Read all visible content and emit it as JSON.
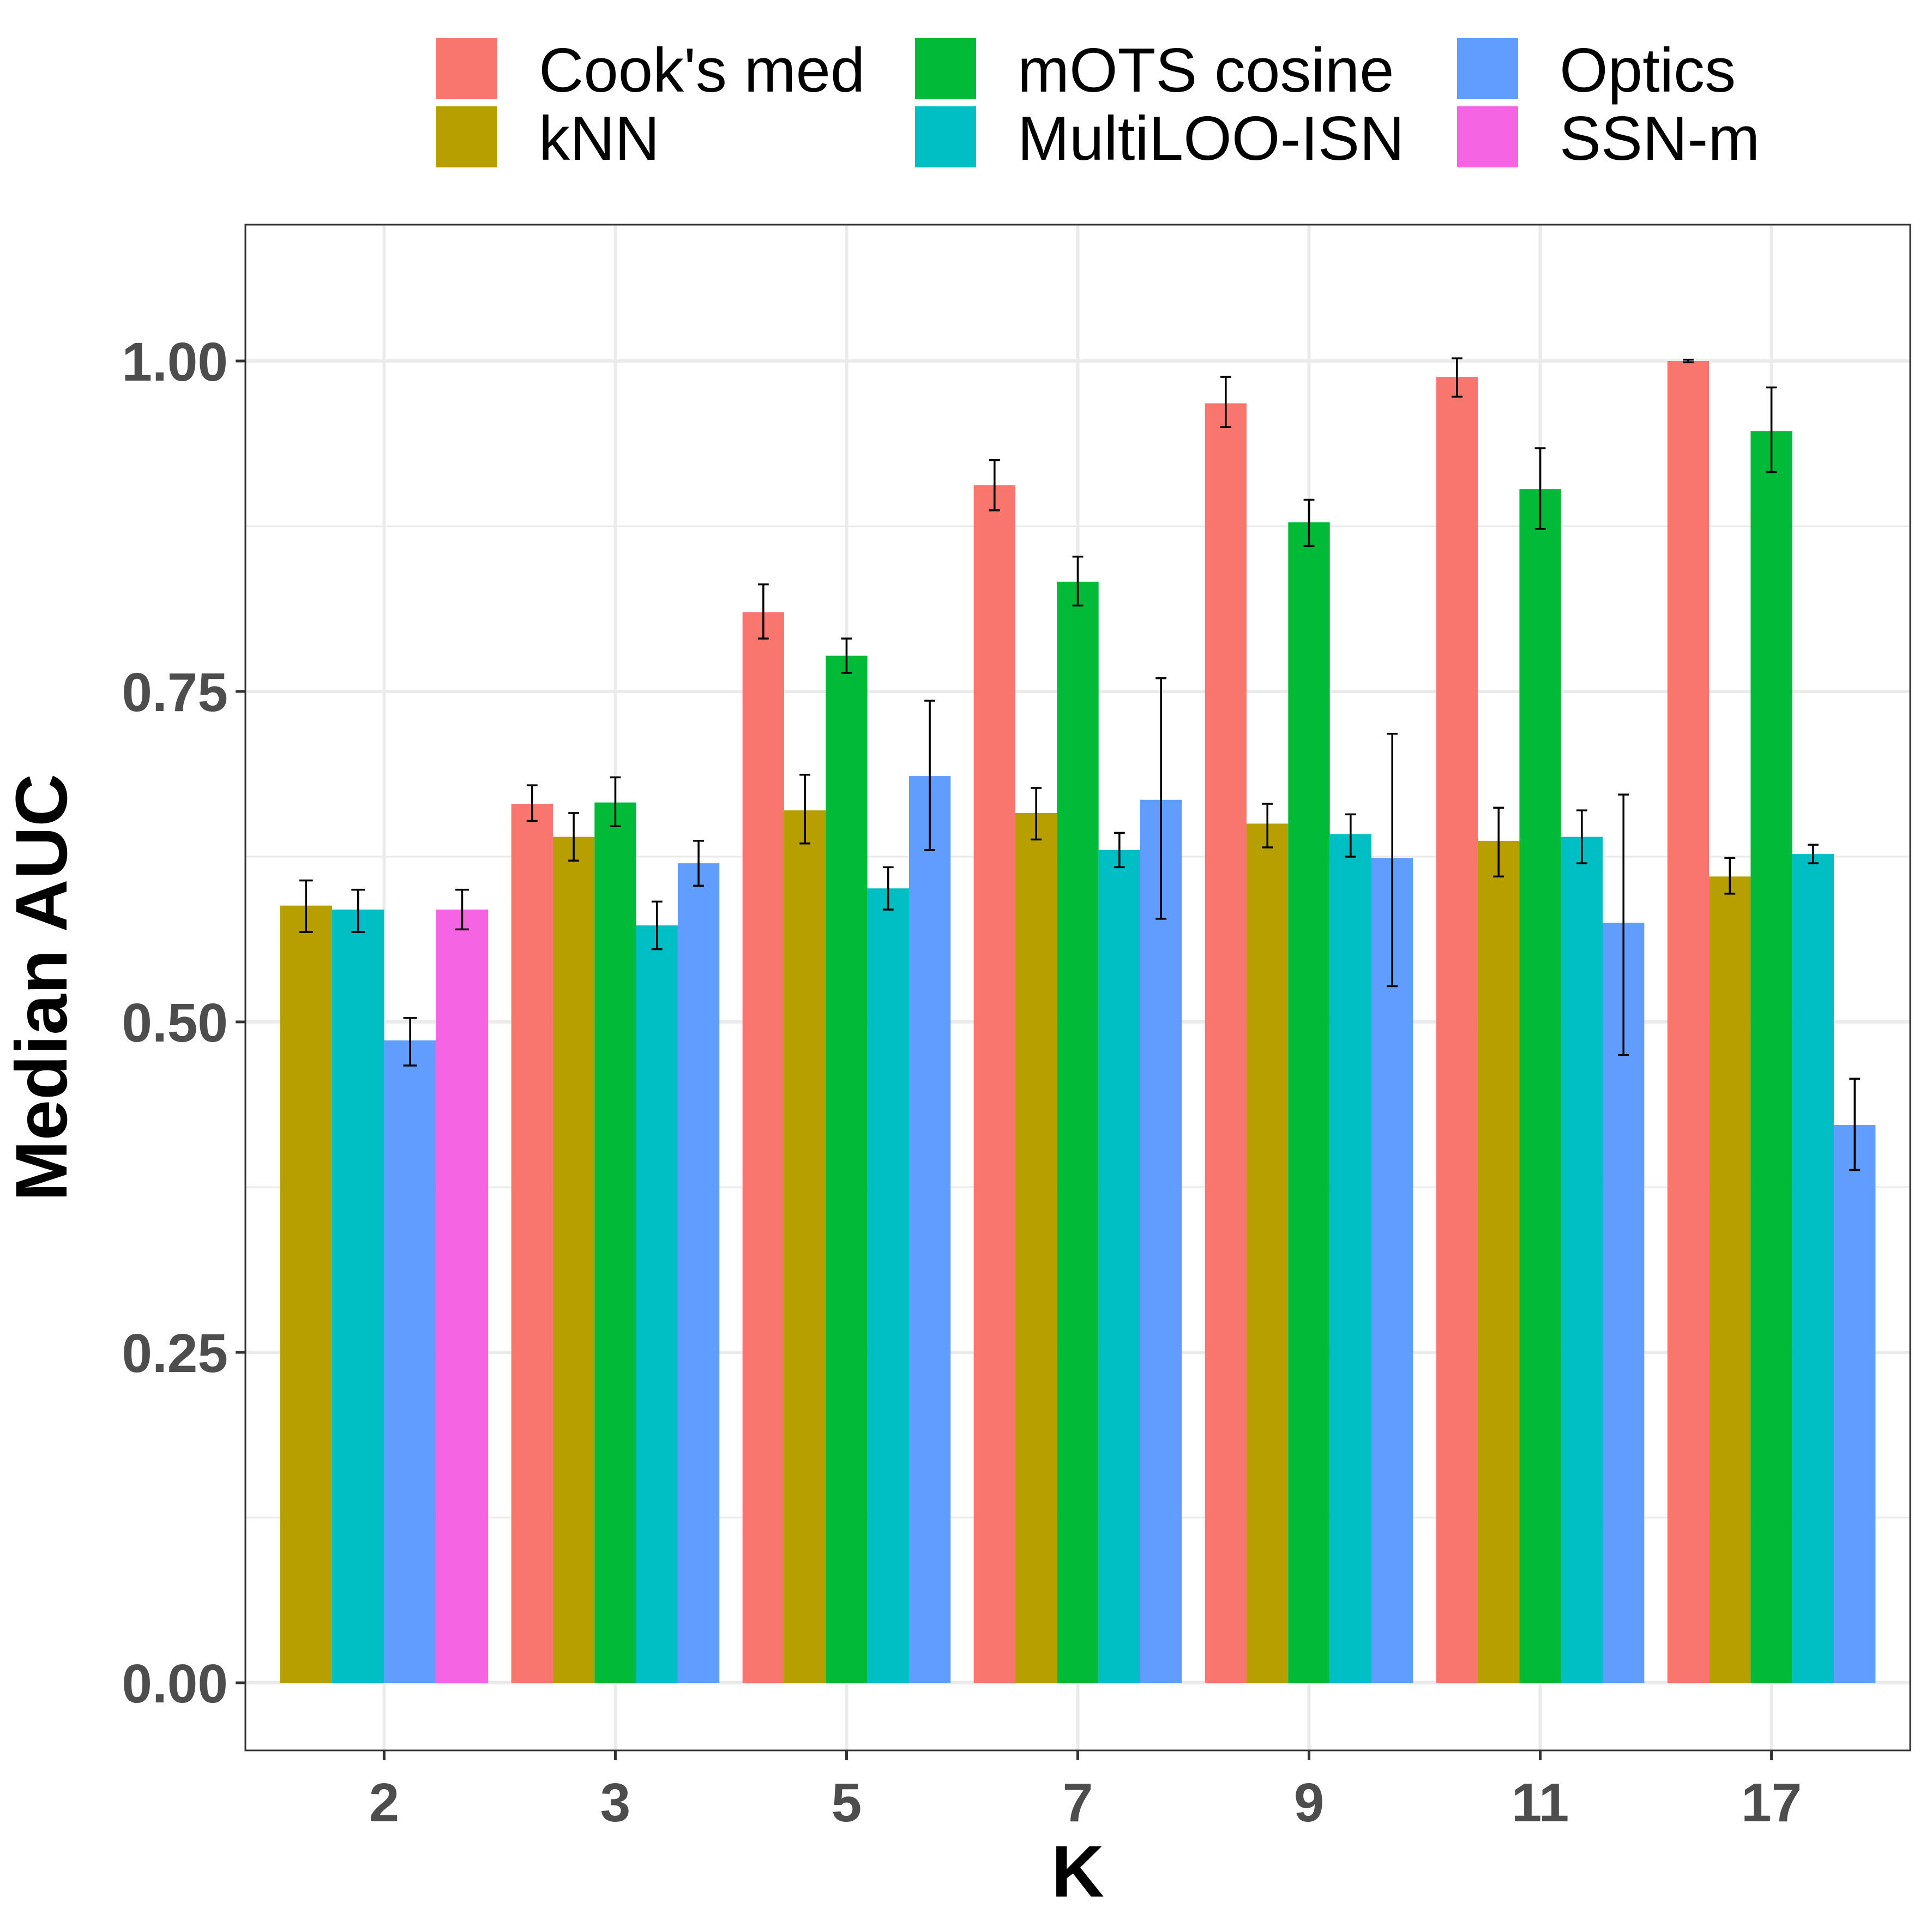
{
  "chart_data": {
    "type": "bar",
    "title": "",
    "xlabel": "K",
    "ylabel": "Median AUC",
    "categories": [
      "2",
      "3",
      "5",
      "7",
      "9",
      "11",
      "17"
    ],
    "ylim": [
      -0.05,
      1.1
    ],
    "yticks": [
      0.0,
      0.25,
      0.5,
      0.75,
      1.0
    ],
    "ytick_labels": [
      "0.00",
      "0.25",
      "0.50",
      "0.75",
      "1.00"
    ],
    "grid": true,
    "legend_position": "top",
    "series": [
      {
        "name": "Cook's med",
        "color": "#F8766D",
        "values": [
          null,
          0.665,
          0.81,
          0.906,
          0.968,
          0.988,
          1.0
        ],
        "err_low": [
          null,
          0.652,
          0.79,
          0.887,
          0.95,
          0.973,
          0.999
        ],
        "err_high": [
          null,
          0.679,
          0.831,
          0.925,
          0.988,
          1.002,
          1.001
        ]
      },
      {
        "name": "kNN",
        "color": "#B79F00",
        "values": [
          0.588,
          0.64,
          0.66,
          0.658,
          0.65,
          0.637,
          0.61
        ],
        "err_low": [
          0.568,
          0.622,
          0.635,
          0.638,
          0.632,
          0.61,
          0.597
        ],
        "err_high": [
          0.607,
          0.658,
          0.687,
          0.677,
          0.665,
          0.662,
          0.624
        ]
      },
      {
        "name": "mOTS cosine",
        "color": "#00BA38",
        "values": [
          null,
          0.666,
          0.777,
          0.833,
          0.878,
          0.903,
          0.947
        ],
        "err_low": [
          null,
          0.648,
          0.764,
          0.815,
          0.86,
          0.873,
          0.916
        ],
        "err_high": [
          null,
          0.685,
          0.79,
          0.852,
          0.895,
          0.934,
          0.98
        ]
      },
      {
        "name": "MultiLOO-ISN",
        "color": "#00BFC4",
        "values": [
          0.585,
          0.573,
          0.601,
          0.63,
          0.642,
          0.64,
          0.627
        ],
        "err_low": [
          0.568,
          0.555,
          0.585,
          0.617,
          0.625,
          0.62,
          0.62
        ],
        "err_high": [
          0.6,
          0.591,
          0.617,
          0.643,
          0.657,
          0.66,
          0.634
        ]
      },
      {
        "name": "Optics",
        "color": "#619CFF",
        "values": [
          0.486,
          0.62,
          0.686,
          0.668,
          0.624,
          0.575,
          0.422
        ],
        "err_low": [
          0.467,
          0.603,
          0.63,
          0.578,
          0.527,
          0.475,
          0.388
        ],
        "err_high": [
          0.503,
          0.637,
          0.743,
          0.76,
          0.718,
          0.672,
          0.457
        ]
      },
      {
        "name": "SSN-m",
        "color": "#F564E3",
        "values": [
          0.585,
          null,
          null,
          null,
          null,
          null,
          null
        ],
        "err_low": [
          0.57,
          null,
          null,
          null,
          null,
          null,
          null
        ],
        "err_high": [
          0.6,
          null,
          null,
          null,
          null,
          null,
          null
        ]
      }
    ],
    "legend_layout": [
      [
        "Cook's med",
        "kNN"
      ],
      [
        "mOTS cosine",
        "MultiLOO-ISN"
      ],
      [
        "Optics",
        "SSN-m"
      ]
    ]
  }
}
